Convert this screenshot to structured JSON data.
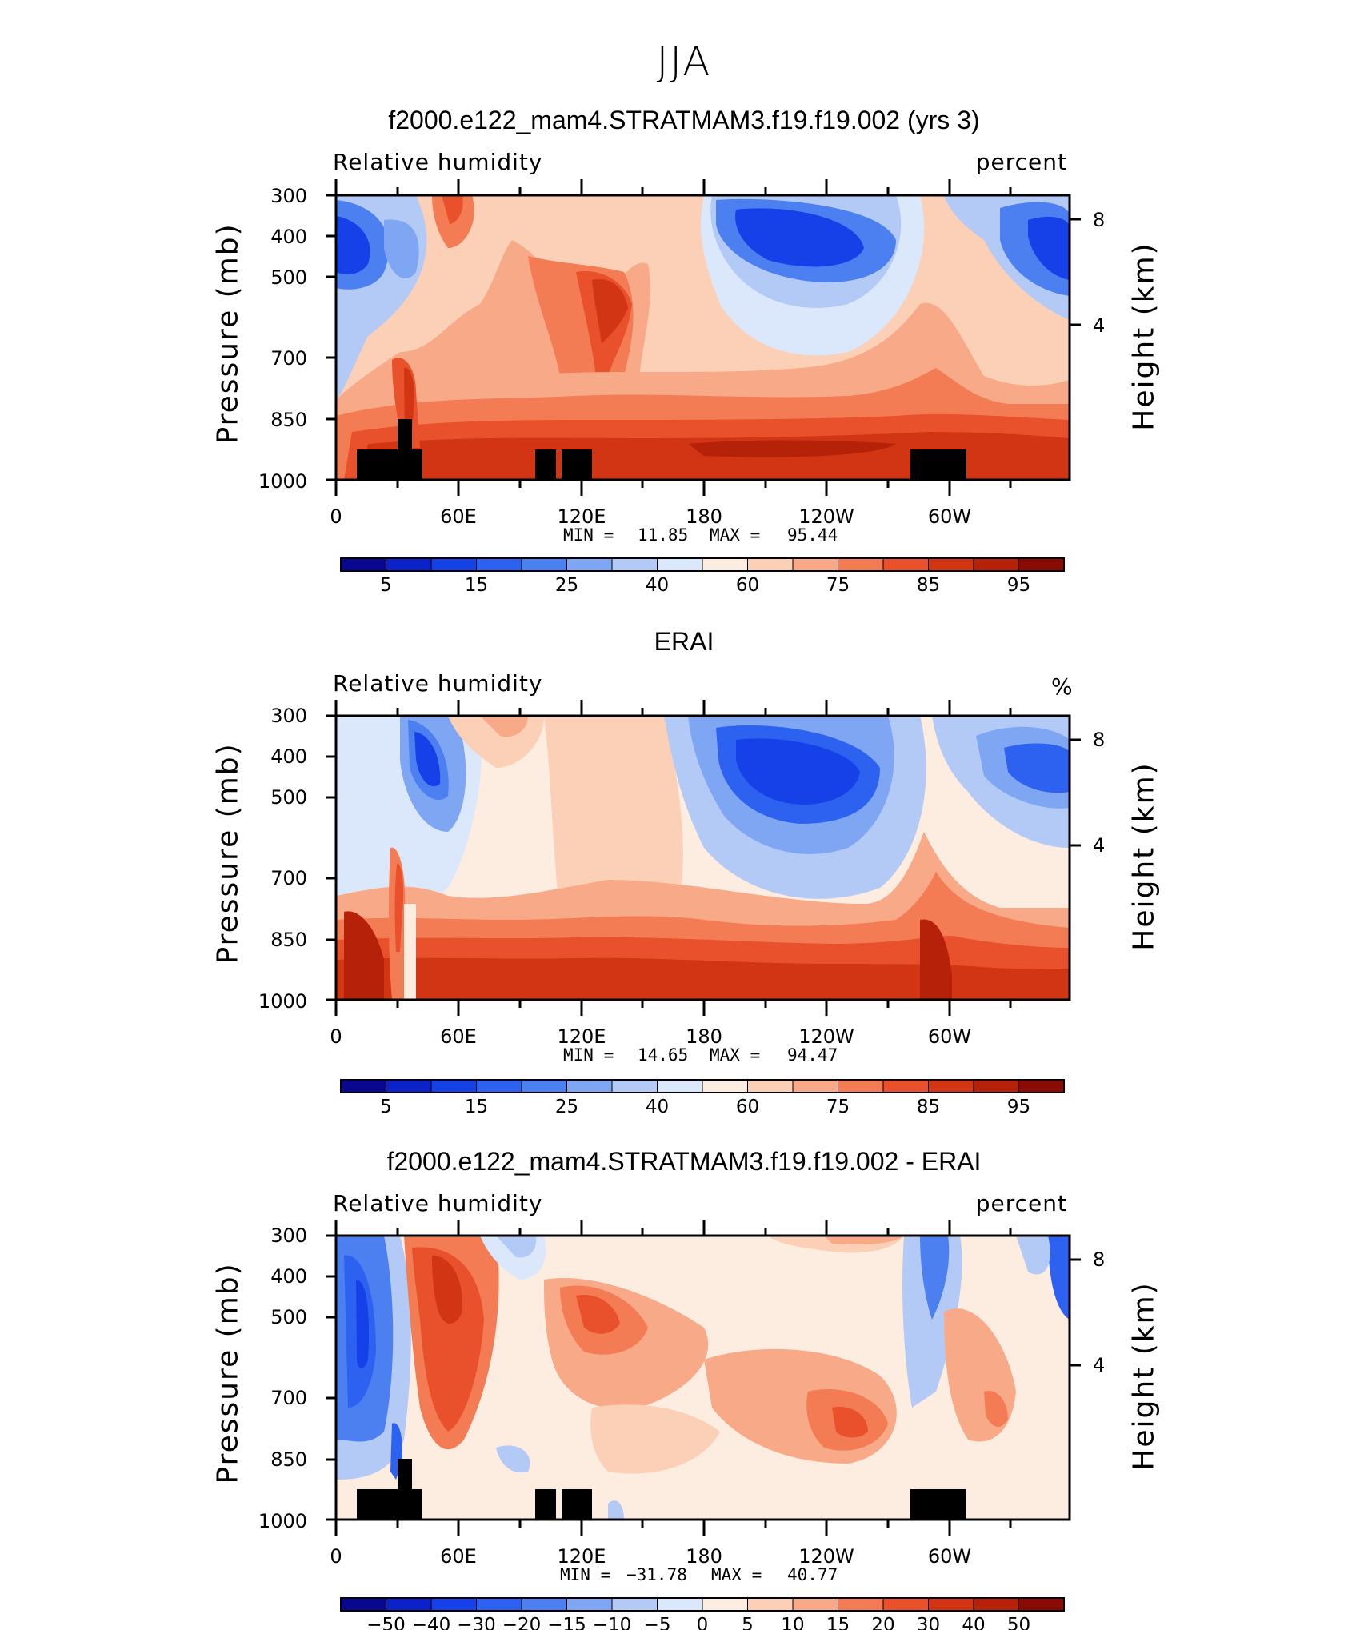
{
  "title": "JJA",
  "colors": {
    "palette": [
      "#08088f",
      "#0a22c8",
      "#1741e8",
      "#2d62f0",
      "#4c80f0",
      "#7ea6f2",
      "#b3c9f6",
      "#dbe8fb",
      "#fdece0",
      "#fcd0b6",
      "#f8a987",
      "#f47c55",
      "#e8512b",
      "#d23514",
      "#b52109",
      "#8a0b05"
    ],
    "land": "#000000",
    "frame": "#000000"
  },
  "colorbars": {
    "absolute": [
      "5",
      "15",
      "25",
      "40",
      "60",
      "75",
      "85",
      "95"
    ],
    "difference": [
      "−50",
      "−40",
      "−30",
      "−20",
      "−15",
      "−10",
      "−5",
      "0",
      "5",
      "10",
      "15",
      "20",
      "30",
      "40",
      "50"
    ]
  },
  "chart_data": [
    {
      "type": "heatmap",
      "title": "f2000.e122_mam4.STRATMAM3.f19.f19.002 (yrs 3)",
      "variable": "Relative humidity",
      "units": "percent",
      "xlabel": "",
      "ylabel": "Pressure (mb)",
      "ylabel_right": "Height (km)",
      "x_ticks": [
        "0",
        "60E",
        "120E",
        "180",
        "120W",
        "60W"
      ],
      "y_ticks": [
        "300",
        "400",
        "500",
        "700",
        "850",
        "1000"
      ],
      "y_right_ticks": [
        "8",
        "4"
      ],
      "xlim": [
        0,
        360
      ],
      "ylim": [
        1000,
        300
      ],
      "min_label": "MIN =",
      "min": "11.85",
      "max_label": "MAX =",
      "max": "95.44",
      "colorbar_ticks": "absolute"
    },
    {
      "type": "heatmap",
      "title": "ERAI",
      "variable": "Relative humidity",
      "units": "%",
      "xlabel": "",
      "ylabel": "Pressure (mb)",
      "ylabel_right": "Height (km)",
      "x_ticks": [
        "0",
        "60E",
        "120E",
        "180",
        "120W",
        "60W"
      ],
      "y_ticks": [
        "300",
        "400",
        "500",
        "700",
        "850",
        "1000"
      ],
      "y_right_ticks": [
        "8",
        "4"
      ],
      "xlim": [
        0,
        360
      ],
      "ylim": [
        1000,
        300
      ],
      "min_label": "MIN =",
      "min": "14.65",
      "max_label": "MAX =",
      "max": "94.47",
      "colorbar_ticks": "absolute"
    },
    {
      "type": "heatmap",
      "title": "f2000.e122_mam4.STRATMAM3.f19.f19.002 - ERAI",
      "variable": "Relative humidity",
      "units": "percent",
      "xlabel": "",
      "ylabel": "Pressure (mb)",
      "ylabel_right": "Height (km)",
      "x_ticks": [
        "0",
        "60E",
        "120E",
        "180",
        "120W",
        "60W"
      ],
      "y_ticks": [
        "300",
        "400",
        "500",
        "700",
        "850",
        "1000"
      ],
      "y_right_ticks": [
        "8",
        "4"
      ],
      "xlim": [
        0,
        360
      ],
      "ylim": [
        1000,
        300
      ],
      "min_label": "MIN =",
      "min": "−31.78",
      "max_label": "MAX =",
      "max": "40.77",
      "colorbar_ticks": "difference"
    }
  ]
}
